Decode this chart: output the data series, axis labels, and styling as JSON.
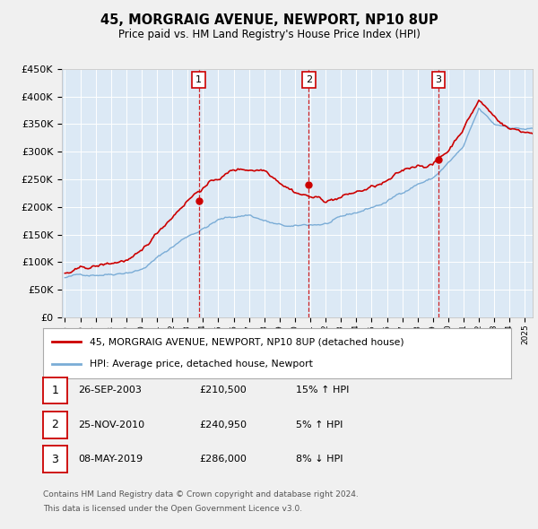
{
  "title": "45, MORGRAIG AVENUE, NEWPORT, NP10 8UP",
  "subtitle": "Price paid vs. HM Land Registry's House Price Index (HPI)",
  "ylim": [
    0,
    450000
  ],
  "xlim_start": 1994.8,
  "xlim_end": 2025.5,
  "sale_dates": [
    2003.73,
    2010.9,
    2019.36
  ],
  "sale_prices": [
    210500,
    240950,
    286000
  ],
  "sale_labels": [
    "1",
    "2",
    "3"
  ],
  "sale_info": [
    {
      "num": "1",
      "date": "26-SEP-2003",
      "price": "£210,500",
      "change": "15% ↑ HPI"
    },
    {
      "num": "2",
      "date": "25-NOV-2010",
      "price": "£240,950",
      "change": "5% ↑ HPI"
    },
    {
      "num": "3",
      "date": "08-MAY-2019",
      "price": "£286,000",
      "change": "8% ↓ HPI"
    }
  ],
  "legend_line1": "45, MORGRAIG AVENUE, NEWPORT, NP10 8UP (detached house)",
  "legend_line2": "HPI: Average price, detached house, Newport",
  "footnote1": "Contains HM Land Registry data © Crown copyright and database right 2024.",
  "footnote2": "This data is licensed under the Open Government Licence v3.0.",
  "red_color": "#cc0000",
  "blue_color": "#7aacd6",
  "fig_bg_color": "#f0f0f0",
  "plot_bg_color": "#dce9f5"
}
